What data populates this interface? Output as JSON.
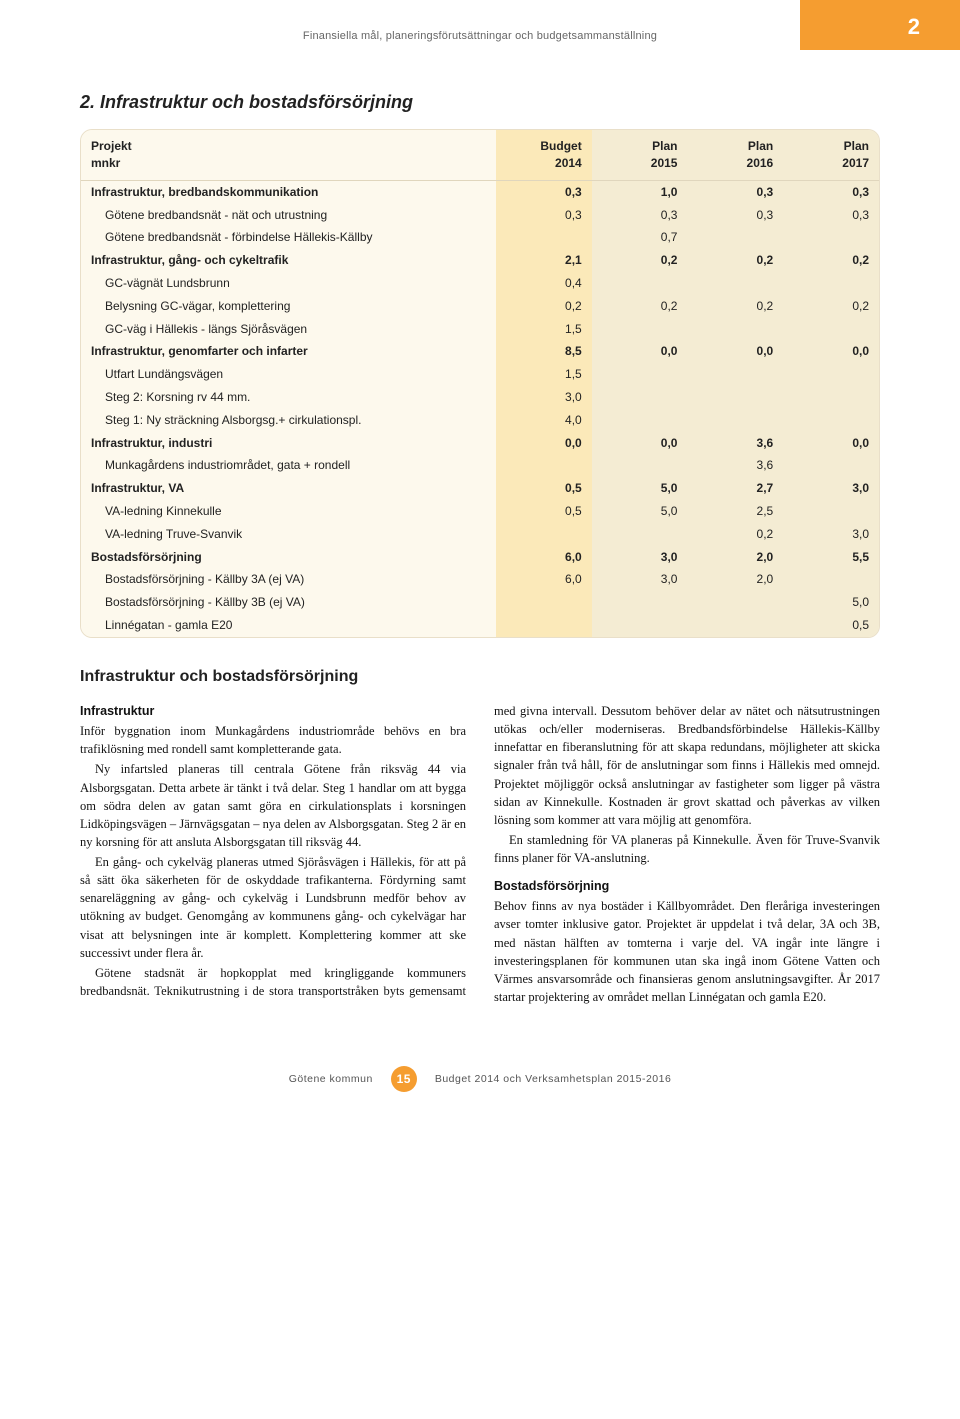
{
  "colors": {
    "accent_orange": "#f59d30",
    "card_bg": "#fdf9ed",
    "budget_col_bg": "#fbe9b9",
    "plan_col_bg": "#f4ecd3",
    "card_border": "#e9dfc9",
    "header_text": "#666666",
    "body_text": "#111111"
  },
  "header": {
    "running_title": "Finansiella mål, planeringsförutsättningar och budgetsammanställning",
    "chapter_number": "2"
  },
  "section": {
    "title": "2. Infrastruktur och bostadsförsörjning"
  },
  "table": {
    "columns": [
      {
        "top": "Projekt",
        "sub": "mnkr",
        "align": "left",
        "class": "c-name"
      },
      {
        "top": "Budget",
        "sub": "2014",
        "align": "right",
        "class": "c-budget"
      },
      {
        "top": "Plan",
        "sub": "2015",
        "align": "right",
        "class": "c-plan"
      },
      {
        "top": "Plan",
        "sub": "2016",
        "align": "right",
        "class": "c-plan"
      },
      {
        "top": "Plan",
        "sub": "2017",
        "align": "right",
        "class": "c-plan"
      }
    ],
    "col_widths_pct": [
      52,
      12,
      12,
      12,
      12
    ],
    "rows": [
      {
        "type": "group",
        "label": "Infrastruktur, bredbandskommunikation",
        "values": [
          "0,3",
          "1,0",
          "0,3",
          "0,3"
        ]
      },
      {
        "type": "sub",
        "label": "Götene bredbandsnät - nät och utrustning",
        "values": [
          "0,3",
          "0,3",
          "0,3",
          "0,3"
        ]
      },
      {
        "type": "sub",
        "label": "Götene bredbandsnät - förbindelse Hällekis-Källby",
        "values": [
          "",
          "0,7",
          "",
          ""
        ]
      },
      {
        "type": "group",
        "label": "Infrastruktur, gång- och cykeltrafik",
        "values": [
          "2,1",
          "0,2",
          "0,2",
          "0,2"
        ]
      },
      {
        "type": "sub",
        "label": "GC-vägnät Lundsbrunn",
        "values": [
          "0,4",
          "",
          "",
          ""
        ]
      },
      {
        "type": "sub",
        "label": "Belysning GC-vägar, komplettering",
        "values": [
          "0,2",
          "0,2",
          "0,2",
          "0,2"
        ]
      },
      {
        "type": "sub",
        "label": "GC-väg i Hällekis - längs Sjöråsvägen",
        "values": [
          "1,5",
          "",
          "",
          ""
        ]
      },
      {
        "type": "group",
        "label": "Infrastruktur, genomfarter och infarter",
        "values": [
          "8,5",
          "0,0",
          "0,0",
          "0,0"
        ]
      },
      {
        "type": "sub",
        "label": "Utfart Lundängsvägen",
        "values": [
          "1,5",
          "",
          "",
          ""
        ]
      },
      {
        "type": "sub",
        "label": "Steg 2: Korsning rv 44 mm.",
        "values": [
          "3,0",
          "",
          "",
          ""
        ]
      },
      {
        "type": "sub",
        "label": "Steg 1: Ny sträckning Alsborgsg.+ cirkulationspl.",
        "values": [
          "4,0",
          "",
          "",
          ""
        ]
      },
      {
        "type": "group",
        "label": "Infrastruktur, industri",
        "values": [
          "0,0",
          "0,0",
          "3,6",
          "0,0"
        ]
      },
      {
        "type": "sub",
        "label": "Munkagårdens industriområdet, gata + rondell",
        "values": [
          "",
          "",
          "3,6",
          ""
        ]
      },
      {
        "type": "group",
        "label": "Infrastruktur, VA",
        "values": [
          "0,5",
          "5,0",
          "2,7",
          "3,0"
        ]
      },
      {
        "type": "sub",
        "label": "VA-ledning Kinnekulle",
        "values": [
          "0,5",
          "5,0",
          "2,5",
          ""
        ]
      },
      {
        "type": "sub",
        "label": "VA-ledning Truve-Svanvik",
        "values": [
          "",
          "",
          "0,2",
          "3,0"
        ]
      },
      {
        "type": "group",
        "label": "Bostadsförsörjning",
        "values": [
          "6,0",
          "3,0",
          "2,0",
          "5,5"
        ]
      },
      {
        "type": "sub",
        "label": "Bostadsförsörjning - Källby 3A (ej VA)",
        "values": [
          "6,0",
          "3,0",
          "2,0",
          ""
        ]
      },
      {
        "type": "sub",
        "label": "Bostadsförsörjning - Källby 3B (ej VA)",
        "values": [
          "",
          "",
          "",
          "5,0"
        ]
      },
      {
        "type": "sub",
        "label": "Linnégatan - gamla E20",
        "values": [
          "",
          "",
          "",
          "0,5"
        ]
      }
    ]
  },
  "subsection": {
    "title": "Infrastruktur och bostadsförsörjning",
    "para_head_1": "Infrastruktur",
    "p1": "Inför byggnation inom Munkagårdens industriområde behövs en bra trafiklösning med rondell samt kompletterande gata.",
    "p2": "Ny infartsled planeras till centrala Götene från riksväg 44 via Alsborgsgatan. Detta arbete är tänkt i två delar. Steg 1 handlar om att bygga om södra delen av gatan samt göra en cirkulationsplats i korsningen Lidköpingsvägen – Järnvägsgatan – nya delen av Alsborgsgatan. Steg 2 är en ny korsning för att ansluta Alsborgsgatan till riksväg 44.",
    "p3": "En gång- och cykelväg planeras utmed Sjöråsvägen i Hällekis, för att på så sätt öka säkerheten för de oskyddade trafikanterna. Fördyrning samt senareläggning av gång- och cykelväg i Lundsbrunn medför behov av utökning av budget. Genomgång av kommunens gång- och cykelvägar har visat att belysningen inte är komplett. Komplettering kommer att ske successivt under flera år.",
    "p4": "Götene stadsnät är hopkopplat med kringliggande kommuners bredbandsnät. Teknikutrustning i de stora transportstråken byts gemensamt med givna intervall. Dessutom behöver delar av nätet och nätsutrustningen utökas och/eller moderniseras. Bredbandsförbindelse Hällekis-Källby innefattar en fiberanslutning för att skapa redundans, möjligheter att skicka signaler från två håll, för de anslutningar som finns i Hällekis med omnejd. Projektet möjliggör också anslutningar av fastigheter som ligger på västra sidan av Kinnekulle. Kostnaden är grovt skattad och påverkas av vilken lösning som kommer att vara möjlig att genomföra.",
    "p5": "En stamledning för VA planeras på Kinnekulle. Även för Truve-Svanvik finns planer för VA-anslutning.",
    "para_head_2": "Bostadsförsörjning",
    "p6": "Behov finns av nya bostäder i Källbyområdet. Den fleråriga investeringen avser tomter inklusive gator. Projektet är uppdelat i två delar, 3A och 3B, med nästan hälften av tomterna i varje del. VA ingår inte längre i investeringsplanen för kommunen utan ska ingå inom Götene Vatten och Värmes ansvarsområde och finansieras genom anslutningsavgifter. År 2017 startar projektering av området mellan Linnégatan och gamla E20."
  },
  "footer": {
    "left": "Götene kommun",
    "page": "15",
    "right": "Budget 2014 och Verksamhetsplan 2015-2016"
  }
}
